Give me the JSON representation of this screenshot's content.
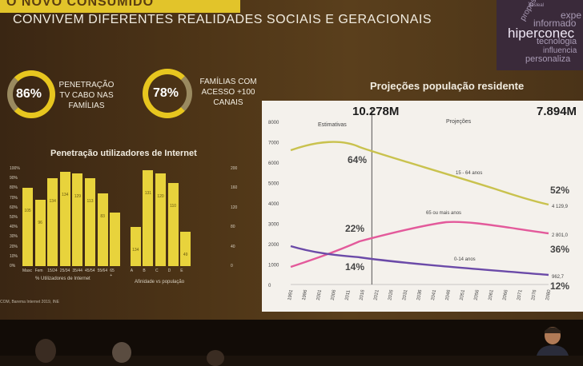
{
  "slide": {
    "top_banner": "O NOVO CONSUMIDO",
    "subtitle": "CONVIVEM DIFERENTES REALIDADES SOCIAIS E GERACIONAIS",
    "word_cloud": [
      "hiperconec",
      "informado",
      "tecnologia",
      "influencia",
      "personaliza",
      "expe",
      "propósito",
      "desleal"
    ]
  },
  "stats": [
    {
      "value": "86%",
      "text": "PENETRAÇÃO TV CABO NAS FAMÍLIAS",
      "fraction": 0.86
    },
    {
      "value": "78%",
      "text": "FAMÍLIAS COM ACESSO +100 CANAIS",
      "fraction": 0.78
    }
  ],
  "internet_chart": {
    "title": "Penetração utilizadores de Internet",
    "legend": "% Utilizadores de Internet",
    "xlabel": "Afinidade vs população",
    "y_left_ticks": [
      "100%",
      "90%",
      "80%",
      "70%",
      "60%",
      "50%",
      "40%",
      "30%",
      "20%",
      "10%",
      "0%"
    ],
    "y_right_ticks": [
      "200",
      "160",
      "120",
      "80",
      "40",
      "0"
    ],
    "categories": [
      "Masc",
      "Fem",
      "15/24",
      "25/34",
      "35/44",
      "45/54",
      "55/64",
      "65 +",
      "A",
      "B",
      "C",
      "D",
      "E"
    ],
    "affinity": [
      "105",
      "96",
      "134",
      "134",
      "129",
      "113",
      "83",
      "",
      "134",
      "131",
      "120",
      "110",
      "49"
    ],
    "values": [
      80,
      68,
      90,
      97,
      95,
      90,
      75,
      55,
      40,
      98,
      95,
      85,
      35
    ]
  },
  "projection": {
    "title": "Projeções população residente",
    "left_total": "10.278M",
    "right_total": "7.894M",
    "segment_labels": [
      "Estimativas",
      "Projeções"
    ],
    "series": [
      {
        "name": "15 - 64 anos",
        "start_pct": "64%",
        "end_pct": "52%",
        "end_value": "4 129,9",
        "color": "#c9c24e"
      },
      {
        "name": "65 ou mais anos",
        "start_pct": "22%",
        "end_pct": "36%",
        "end_value": "2 801,0",
        "color": "#e35a9b"
      },
      {
        "name": "0-14 anos",
        "start_pct": "14%",
        "end_pct": "12%",
        "end_value": "962,7",
        "color": "#6b4aa8"
      }
    ],
    "y_ticks": [
      "8000",
      "7000",
      "6000",
      "5000",
      "4000",
      "3000",
      "2000",
      "1000",
      "0"
    ],
    "x_ticks": [
      "1991",
      "1996",
      "2001",
      "2006",
      "2011",
      "2016",
      "2021",
      "2026",
      "2031",
      "2036",
      "2041",
      "2046",
      "2051",
      "2056",
      "2061",
      "2066",
      "2071",
      "2076",
      "2080"
    ]
  },
  "footer": "COM, Barema Internet 2019, INE"
}
